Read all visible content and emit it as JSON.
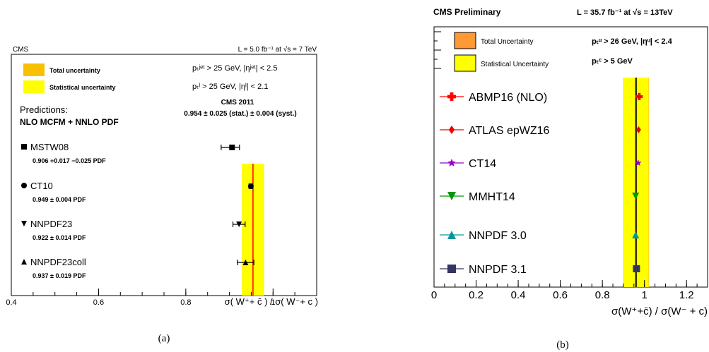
{
  "figure_labels": {
    "a": "(a)",
    "b": "(b)"
  },
  "chart_data": [
    {
      "type": "scatter",
      "panel": "a",
      "header_left": "CMS",
      "header_right": "L = 5.0 fb⁻¹ at √s = 7 TeV",
      "xlabel": "σ( W⁺+ c̄ ) / σ( W⁻+ c )",
      "xlim": [
        0.4,
        1.1
      ],
      "xticks": [
        "0.4",
        "0.6",
        "0.8",
        "1"
      ],
      "tick_values": [
        0.4,
        0.6,
        0.8,
        1.0
      ],
      "legend": [
        {
          "label": "Total uncertainty",
          "color": "#f8c000"
        },
        {
          "label": "Statistical uncertainty",
          "color": "#ffff00"
        }
      ],
      "cuts": [
        "pₜʲᵉᵗ > 25 GeV, |ηʲᵉᵗ| < 2.5",
        "pₜˡ > 25 GeV, |ηˡ| < 2.1"
      ],
      "predictions_title": "Predictions:",
      "predictions_subtitle": "NLO MCFM + NNLO PDF",
      "measurement": {
        "label": "CMS 2011",
        "text": "0.954 ± 0.025 (stat.) ± 0.004 (syst.)",
        "value": 0.954,
        "stat": 0.025,
        "total": 0.0253,
        "color": "#ff0000"
      },
      "series": [
        {
          "name": "MSTW08",
          "marker": "square",
          "value": 0.906,
          "err_plus": 0.017,
          "err_minus": 0.025,
          "value_text": "0.906 +0.017 −0.025 PDF"
        },
        {
          "name": "CT10",
          "marker": "circle",
          "value": 0.949,
          "err_plus": 0.004,
          "err_minus": 0.004,
          "value_text": "0.949 ± 0.004 PDF"
        },
        {
          "name": "NNPDF23",
          "marker": "triangle-down",
          "value": 0.922,
          "err_plus": 0.014,
          "err_minus": 0.014,
          "value_text": "0.922 ± 0.014 PDF"
        },
        {
          "name": "NNPDF23coll",
          "marker": "triangle-up",
          "value": 0.937,
          "err_plus": 0.019,
          "err_minus": 0.019,
          "value_text": "0.937 ± 0.019 PDF"
        }
      ]
    },
    {
      "type": "scatter",
      "panel": "b",
      "header_left": "CMS Preliminary",
      "header_right": "L = 35.7 fb⁻¹ at √s = 13TeV",
      "xlabel": "σ(W⁺+c̄) / σ(W⁻ + c)",
      "xlim": [
        0,
        1.3
      ],
      "xticks": [
        "0",
        "0.2",
        "0.4",
        "0.6",
        "0.8",
        "1",
        "1.2"
      ],
      "tick_values": [
        0,
        0.2,
        0.4,
        0.6,
        0.8,
        1.0,
        1.2
      ],
      "legend": [
        {
          "label": "Total Uncertainty",
          "color": "#ff9933"
        },
        {
          "label": "Statistical Uncertainty",
          "color": "#ffff00"
        }
      ],
      "cuts": [
        "pₜᵘ > 26 GeV, |ηᵘ| < 2.4",
        "pₜᶜ > 5 GeV"
      ],
      "measurement": {
        "value": 0.96,
        "stat": 0.06,
        "total": 0.061,
        "color": "#000000"
      },
      "series": [
        {
          "name": "ABMP16 (NLO)",
          "marker": "cross",
          "color": "#ff0000",
          "value": 0.975
        },
        {
          "name": "ATLAS epWZ16",
          "marker": "diamond",
          "color": "#ee0000",
          "value": 0.972
        },
        {
          "name": "CT14",
          "marker": "star",
          "color": "#9900cc",
          "value": 0.97
        },
        {
          "name": "MMHT14",
          "marker": "triangle-down",
          "color": "#009900",
          "value": 0.958
        },
        {
          "name": "NNPDF 3.0",
          "marker": "triangle-up",
          "color": "#009999",
          "value": 0.958
        },
        {
          "name": "NNPDF 3.1",
          "marker": "square",
          "color": "#333366",
          "value": 0.962
        }
      ]
    }
  ]
}
